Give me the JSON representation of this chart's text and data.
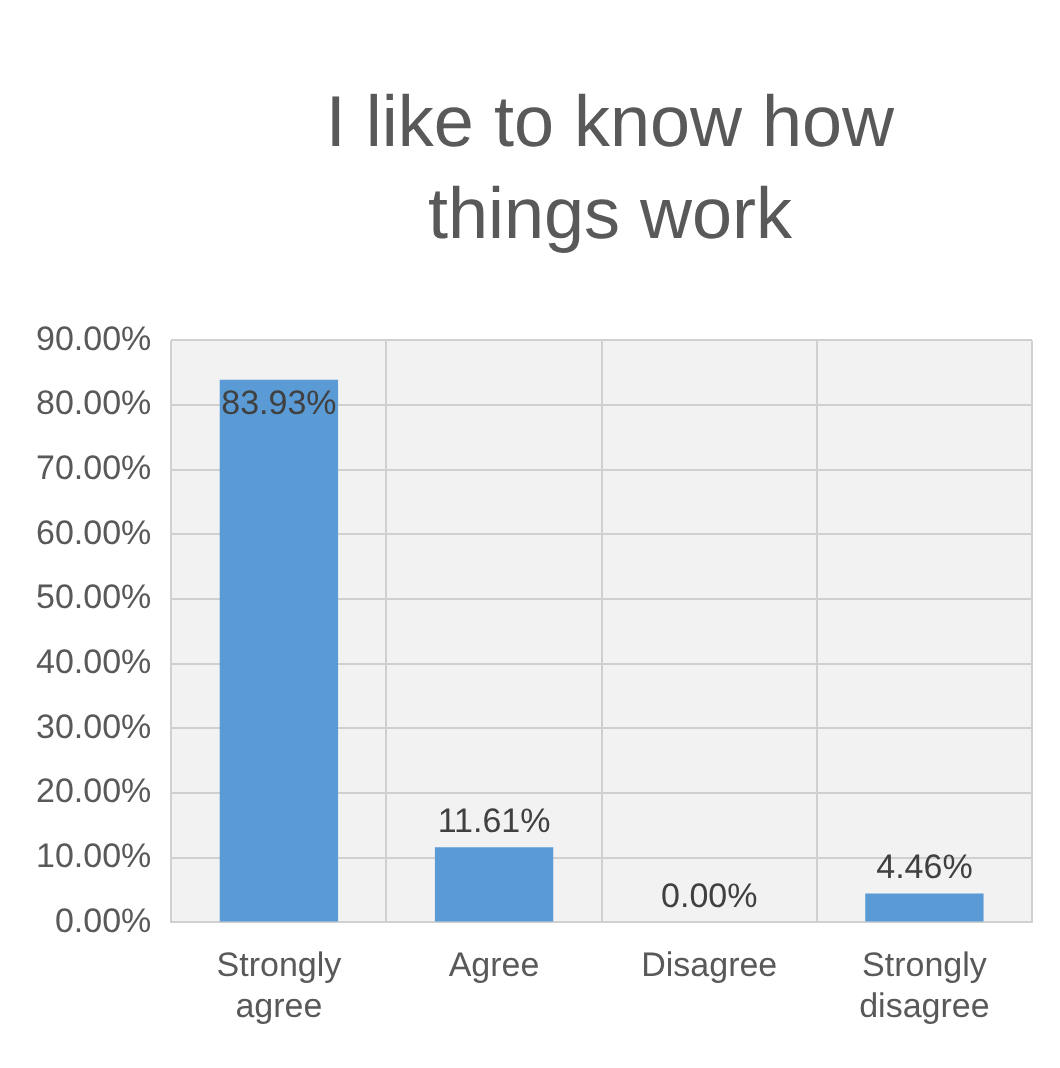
{
  "chart_data": {
    "type": "bar",
    "title": "I like to know how things work",
    "categories": [
      "Strongly agree",
      "Agree",
      "Disagree",
      "Strongly disagree"
    ],
    "values": [
      83.93,
      11.61,
      0,
      4.46
    ],
    "value_labels": [
      "83.93%",
      "11.61%",
      "0.00%",
      "4.46%"
    ],
    "color": "#5b9bd5",
    "ylim": [
      0,
      90
    ],
    "yticks": [
      {
        "value": 0,
        "label": "0.00%"
      },
      {
        "value": 10,
        "label": "10.00%"
      },
      {
        "value": 20,
        "label": "20.00%"
      },
      {
        "value": 30,
        "label": "30.00%"
      },
      {
        "value": 40,
        "label": "40.00%"
      },
      {
        "value": 50,
        "label": "50.00%"
      },
      {
        "value": 60,
        "label": "60.00%"
      },
      {
        "value": 70,
        "label": "70.00%"
      },
      {
        "value": 80,
        "label": "80.00%"
      },
      {
        "value": 90,
        "label": "90.00%"
      }
    ],
    "grid": true
  }
}
